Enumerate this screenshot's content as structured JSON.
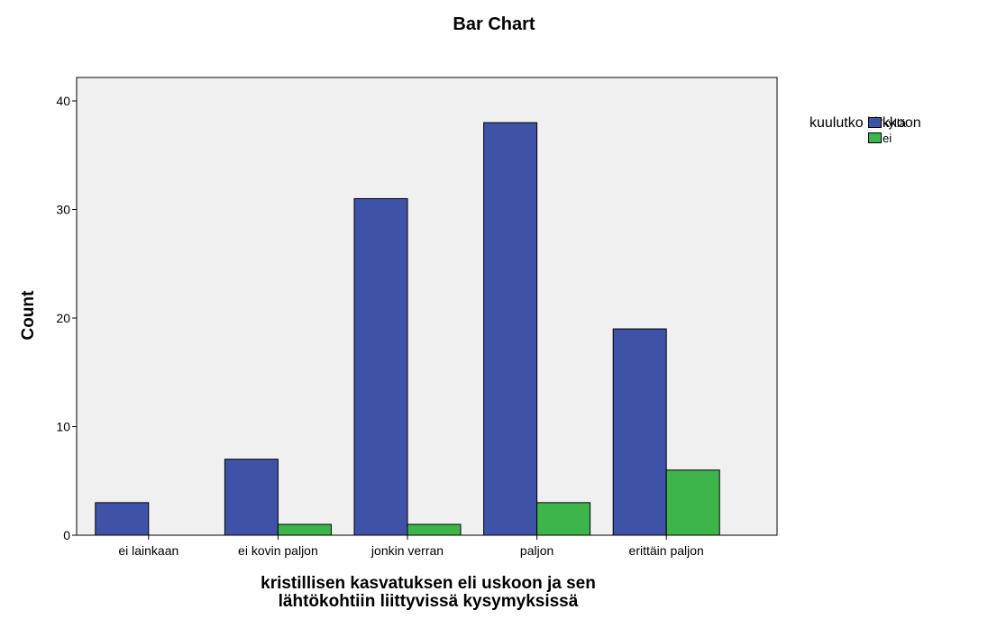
{
  "chart_data": {
    "type": "bar",
    "title": "Bar Chart",
    "xlabel": [
      "kristillisen kasvatuksen eli uskoon ja sen",
      "lähtökohtiin liittyvissä kysymyksissä"
    ],
    "ylabel": "Count",
    "categories": [
      "ei lainkaan",
      "ei kovin paljon",
      "jonkin verran",
      "paljon",
      "erittäin paljon"
    ],
    "series": [
      {
        "name": "kyllä",
        "values": [
          3,
          7,
          31,
          38,
          19
        ],
        "color": "#3e53a7"
      },
      {
        "name": "ei",
        "values": [
          0,
          1,
          1,
          3,
          6
        ],
        "color": "#3db54a"
      }
    ],
    "ylim": [
      0,
      40
    ],
    "yticks": [
      "0",
      "10",
      "20",
      "30",
      "40"
    ],
    "legend_title": "kuulutko kirkkoon",
    "legend_position": "top-right",
    "grid": false,
    "plot_background": "#f0f0f0"
  }
}
